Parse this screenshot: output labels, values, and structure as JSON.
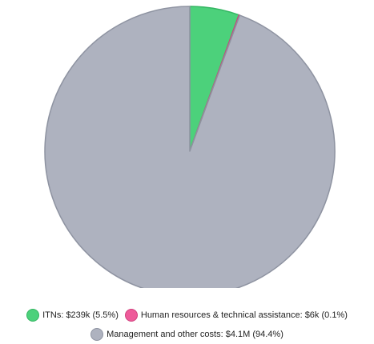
{
  "chart_data": {
    "type": "pie",
    "slices": [
      {
        "label": "ITNs",
        "value": 239000,
        "percent": 5.5,
        "color": "#4cd17b",
        "stroke": "#34b562"
      },
      {
        "label": "Human resources & technical assistance",
        "value": 6000,
        "percent": 0.1,
        "color": "#ee5b9a",
        "stroke": "#d0407d"
      },
      {
        "label": "Management and other costs",
        "value": 4100000,
        "percent": 94.4,
        "color": "#aeb2bf",
        "stroke": "#8e93a1"
      }
    ],
    "legend": [
      "ITNs: $239k (5.5%)",
      "Human resources & technical assistance: $6k (0.1%)",
      "Management and other costs: $4.1M (94.4%)"
    ]
  }
}
